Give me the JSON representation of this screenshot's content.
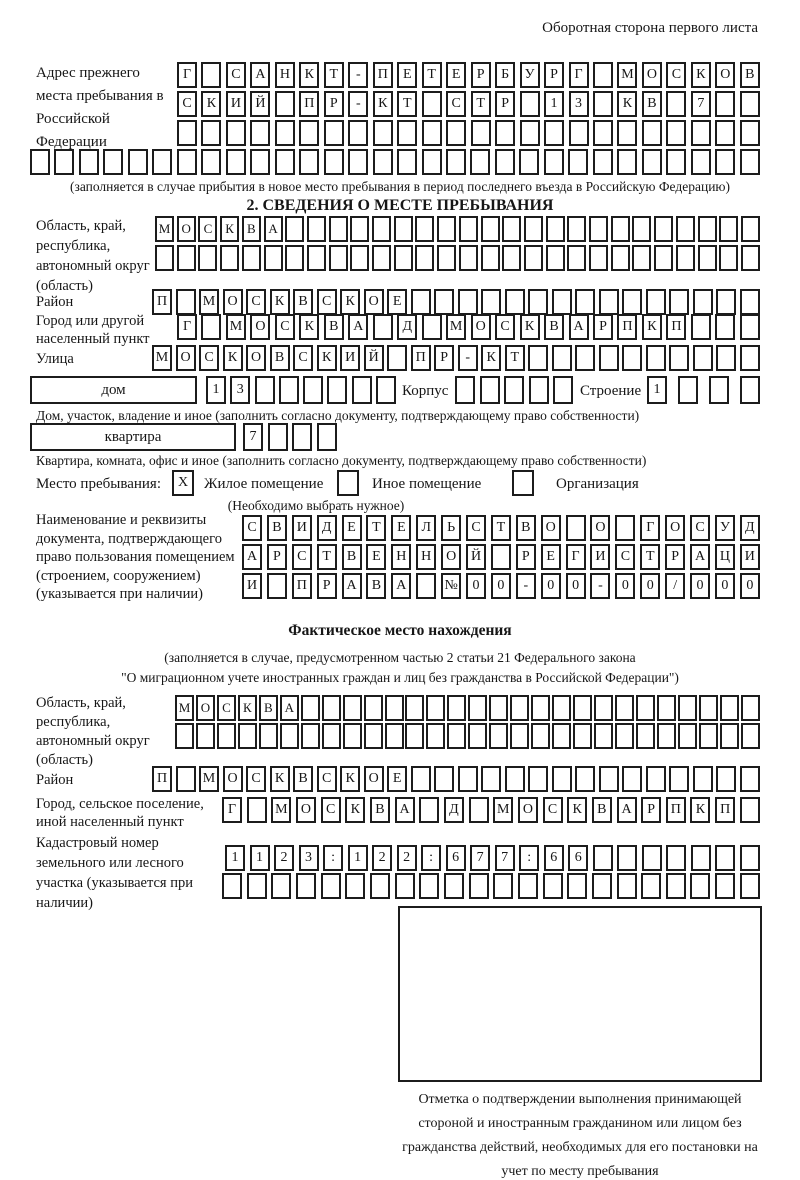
{
  "page": {
    "header_note": "Оборотная сторона первого листа"
  },
  "prev_address": {
    "label": "Адрес прежнего места пребывания в Российской Федерации",
    "rows": [
      {
        "text": "Г САНКТ-ПЕТЕРБУРГ МОСКОВ",
        "count": 24
      },
      {
        "text": "СКИЙ ПР-КТ СТР 13 КВ 7",
        "count": 24
      },
      {
        "text": "",
        "count": 24
      },
      {
        "text": "",
        "count": 30
      }
    ],
    "note": "(заполняется в случае прибытия в новое место пребывания в период последнего въезда в Российскую Федерацию)"
  },
  "section2": {
    "title": "2. СВЕДЕНИЯ О МЕСТЕ ПРЕБЫВАНИЯ",
    "region": {
      "label": "Область, край, республика, автономный округ (область)",
      "rows": [
        {
          "text": "МОСКВА",
          "count": 28
        },
        {
          "text": "",
          "count": 28
        }
      ]
    },
    "district": {
      "label": "Район",
      "row": {
        "text": "П МОСКВСКОЕ",
        "count": 26
      }
    },
    "city": {
      "label": "Город или другой населенный пункт",
      "row": {
        "text": "Г МОСКВА Д МОСКВАРПКП",
        "count": 24
      }
    },
    "street": {
      "label": "Улица",
      "row": {
        "text": "МОСКОВСКИЙ ПР-КТ",
        "count": 26
      }
    },
    "house": {
      "label": "дом",
      "cells": {
        "text": "13",
        "count": 8
      },
      "korpus_label": "Корпус",
      "korpus_cells": {
        "text": "",
        "count": 5
      },
      "stroenie_label": "Строение",
      "stroenie_cells": {
        "text": "1",
        "count": 4
      },
      "note": "Дом, участок, владение и иное (заполнить согласно документу, подтверждающему право собственности)"
    },
    "apartment": {
      "label": "квартира",
      "cells": {
        "text": "7",
        "count": 4
      },
      "note": "Квартира, комната, офис и иное (заполнить согласно документу, подтверждающему право собственности)"
    },
    "residence_type": {
      "label": "Место пребывания:",
      "options": [
        {
          "label": "Жилое помещение",
          "mark": "X"
        },
        {
          "label": "Иное помещение",
          "mark": ""
        },
        {
          "label": "Организация",
          "mark": ""
        }
      ],
      "note": "(Необходимо выбрать нужное)"
    },
    "document": {
      "label": "Наименование и реквизиты документа, подтверждающего право пользования помещением (строением, сооружением) (указывается при наличии)",
      "rows": [
        {
          "text": "СВИДЕТЕЛЬСТВО О ГОСУД",
          "count": 21
        },
        {
          "text": "АРСТВЕННОЙ РЕГИСТРАЦИ",
          "count": 21
        },
        {
          "text": "И ПРАВА №00-00-00/000",
          "count": 21
        }
      ]
    }
  },
  "actual_location": {
    "title": "Фактическое место нахождения",
    "note1": "(заполняется в случае, предусмотренном частью 2 статьи 21 Федерального закона",
    "note2": "\"О миграционном учете иностранных граждан и лиц без гражданства в Российской Федерации\")",
    "region": {
      "label": "Область, край, республика, автономный округ (область)",
      "rows": [
        {
          "text": "МОСКВА",
          "count": 28
        },
        {
          "text": "",
          "count": 28
        }
      ]
    },
    "district": {
      "label": "Район",
      "row": {
        "text": "П МОСКВСКОЕ",
        "count": 26
      }
    },
    "city": {
      "label": "Город, сельское поселение, иной населенный пункт",
      "row": {
        "text": "Г МОСКВА Д МОСКВАРПКП",
        "count": 22
      }
    },
    "cadastral": {
      "label": "Кадастровый номер земельного или лесного участка (указывается при наличии)",
      "rows": [
        {
          "text": "1123:122:677:66",
          "count": 22
        },
        {
          "text": "",
          "count": 22
        }
      ]
    },
    "stamp_note": "Отметка о подтверждении выполнения принимающей стороной и иностранным гражданином или лицом без гражданства действий, необходимых для его постановки на учет по месту пребывания"
  }
}
